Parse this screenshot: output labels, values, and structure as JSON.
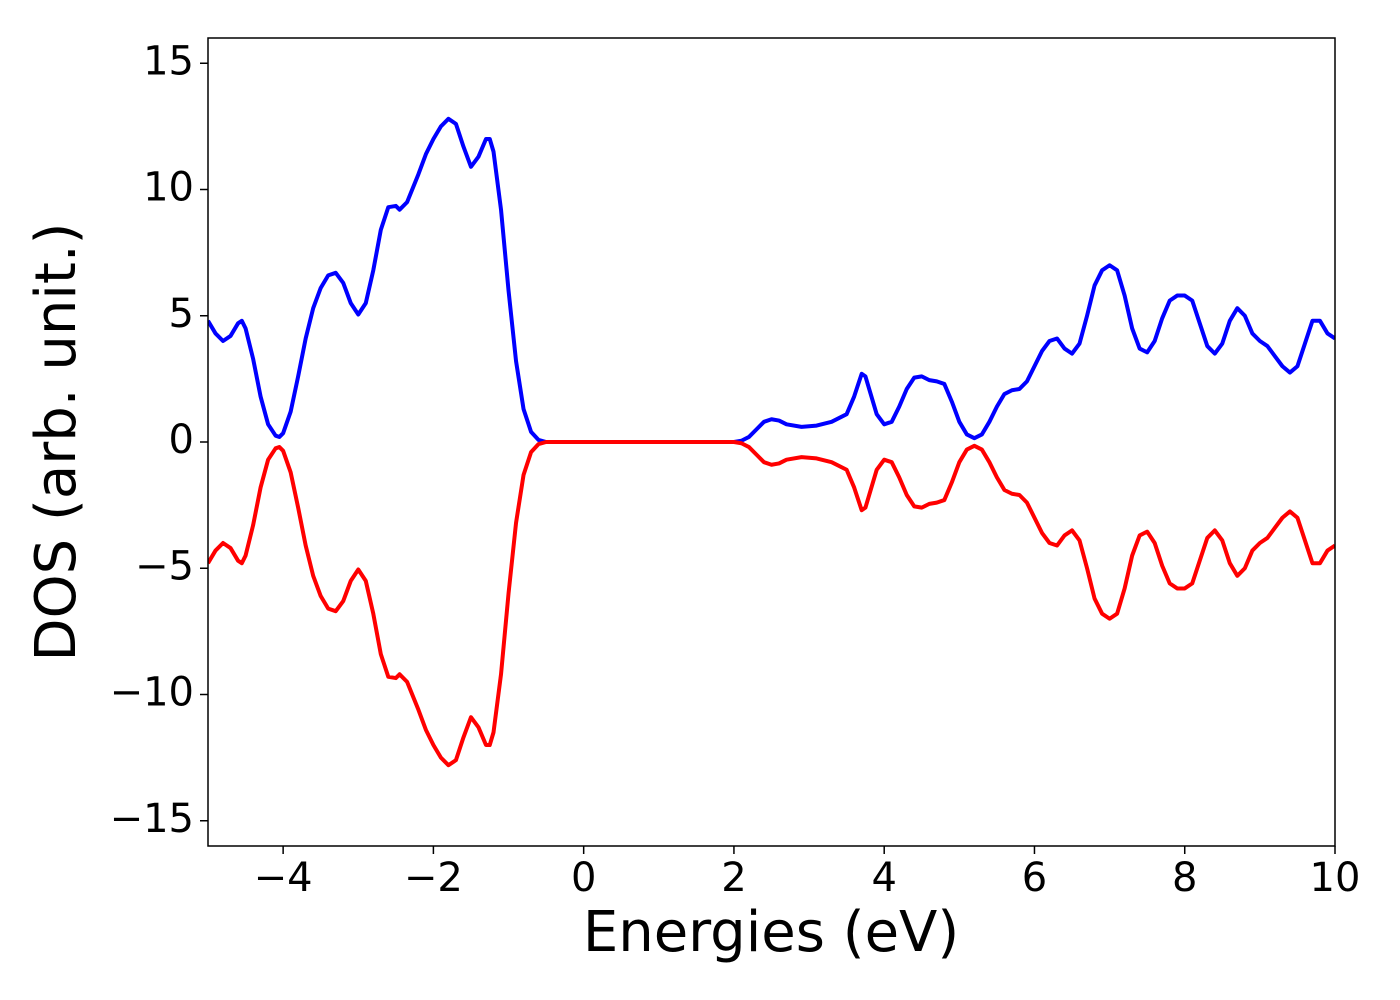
{
  "chart_data": {
    "type": "line",
    "xlabel": "Energies (eV)",
    "ylabel": "DOS (arb. unit.)",
    "xlim": [
      -5,
      10
    ],
    "ylim": [
      -16,
      16
    ],
    "xticks": [
      {
        "value": -4,
        "label": "−4"
      },
      {
        "value": -2,
        "label": "−2"
      },
      0,
      2,
      4,
      6,
      8,
      10
    ],
    "yticks": [
      {
        "value": -15,
        "label": "−15"
      },
      {
        "value": -10,
        "label": "−10"
      },
      {
        "value": -5,
        "label": "−5"
      },
      0,
      5,
      10,
      15
    ],
    "grid": false,
    "x": [
      -5.0,
      -4.9,
      -4.8,
      -4.7,
      -4.6,
      -4.55,
      -4.5,
      -4.4,
      -4.3,
      -4.2,
      -4.1,
      -4.05,
      -4.0,
      -3.9,
      -3.8,
      -3.7,
      -3.6,
      -3.5,
      -3.4,
      -3.3,
      -3.2,
      -3.1,
      -3.0,
      -2.9,
      -2.8,
      -2.7,
      -2.6,
      -2.5,
      -2.45,
      -2.35,
      -2.2,
      -2.1,
      -2.0,
      -1.9,
      -1.8,
      -1.7,
      -1.6,
      -1.5,
      -1.4,
      -1.3,
      -1.25,
      -1.2,
      -1.1,
      -1.0,
      -0.9,
      -0.8,
      -0.7,
      -0.6,
      -0.5,
      0,
      1,
      2,
      2.1,
      2.2,
      2.3,
      2.4,
      2.5,
      2.6,
      2.7,
      2.9,
      3.1,
      3.3,
      3.5,
      3.6,
      3.7,
      3.75,
      3.8,
      3.9,
      4.0,
      4.1,
      4.2,
      4.3,
      4.4,
      4.5,
      4.6,
      4.7,
      4.8,
      4.9,
      5.0,
      5.1,
      5.2,
      5.3,
      5.4,
      5.5,
      5.6,
      5.7,
      5.8,
      5.9,
      6.0,
      6.1,
      6.2,
      6.3,
      6.4,
      6.5,
      6.6,
      6.7,
      6.8,
      6.9,
      7.0,
      7.1,
      7.2,
      7.3,
      7.4,
      7.5,
      7.6,
      7.7,
      7.8,
      7.9,
      8.0,
      8.1,
      8.2,
      8.3,
      8.4,
      8.5,
      8.6,
      8.7,
      8.8,
      8.9,
      9.0,
      9.1,
      9.2,
      9.3,
      9.4,
      9.5,
      9.6,
      9.7,
      9.8,
      9.9,
      10.0
    ],
    "series": [
      {
        "color": "#0000ff",
        "values": [
          4.8,
          4.3,
          4.0,
          4.2,
          4.7,
          4.8,
          4.5,
          3.3,
          1.8,
          0.7,
          0.25,
          0.2,
          0.35,
          1.2,
          2.6,
          4.1,
          5.3,
          6.1,
          6.6,
          6.7,
          6.3,
          5.5,
          5.05,
          5.5,
          6.8,
          8.4,
          9.3,
          9.35,
          9.2,
          9.5,
          10.6,
          11.4,
          12.0,
          12.5,
          12.8,
          12.6,
          11.7,
          10.9,
          11.3,
          12.0,
          12.0,
          11.5,
          9.2,
          6.0,
          3.2,
          1.3,
          0.4,
          0.08,
          0,
          0,
          0,
          0,
          0.05,
          0.2,
          0.5,
          0.8,
          0.9,
          0.85,
          0.7,
          0.6,
          0.65,
          0.8,
          1.1,
          1.8,
          2.7,
          2.6,
          2.1,
          1.1,
          0.7,
          0.8,
          1.4,
          2.1,
          2.55,
          2.6,
          2.45,
          2.4,
          2.3,
          1.6,
          0.8,
          0.3,
          0.15,
          0.3,
          0.8,
          1.4,
          1.9,
          2.05,
          2.1,
          2.4,
          3.0,
          3.6,
          4.0,
          4.1,
          3.7,
          3.5,
          3.9,
          5.0,
          6.2,
          6.8,
          7.0,
          6.8,
          5.8,
          4.5,
          3.7,
          3.55,
          4.0,
          4.9,
          5.6,
          5.8,
          5.8,
          5.6,
          4.7,
          3.8,
          3.5,
          3.9,
          4.8,
          5.3,
          5.0,
          4.3,
          4.0,
          3.8,
          3.4,
          3.0,
          2.75,
          3.0,
          3.9,
          4.8,
          4.8,
          4.3,
          4.1
        ]
      },
      {
        "color": "#ff0000",
        "values": [
          -4.8,
          -4.3,
          -4.0,
          -4.2,
          -4.7,
          -4.8,
          -4.5,
          -3.3,
          -1.8,
          -0.7,
          -0.25,
          -0.2,
          -0.35,
          -1.2,
          -2.6,
          -4.1,
          -5.3,
          -6.1,
          -6.6,
          -6.7,
          -6.3,
          -5.5,
          -5.05,
          -5.5,
          -6.8,
          -8.4,
          -9.3,
          -9.35,
          -9.2,
          -9.5,
          -10.6,
          -11.4,
          -12.0,
          -12.5,
          -12.8,
          -12.6,
          -11.7,
          -10.9,
          -11.3,
          -12.0,
          -12.0,
          -11.5,
          -9.2,
          -6.0,
          -3.2,
          -1.3,
          -0.4,
          -0.08,
          0,
          0,
          0,
          0,
          -0.05,
          -0.2,
          -0.5,
          -0.8,
          -0.9,
          -0.85,
          -0.7,
          -0.6,
          -0.65,
          -0.8,
          -1.1,
          -1.8,
          -2.7,
          -2.6,
          -2.1,
          -1.1,
          -0.7,
          -0.8,
          -1.4,
          -2.1,
          -2.55,
          -2.6,
          -2.45,
          -2.4,
          -2.3,
          -1.6,
          -0.8,
          -0.3,
          -0.15,
          -0.3,
          -0.8,
          -1.4,
          -1.9,
          -2.05,
          -2.1,
          -2.4,
          -3.0,
          -3.6,
          -4.0,
          -4.1,
          -3.7,
          -3.5,
          -3.9,
          -5.0,
          -6.2,
          -6.8,
          -7.0,
          -6.8,
          -5.8,
          -4.5,
          -3.7,
          -3.55,
          -4.0,
          -4.9,
          -5.6,
          -5.8,
          -5.8,
          -5.6,
          -4.7,
          -3.8,
          -3.5,
          -3.9,
          -4.8,
          -5.3,
          -5.0,
          -4.3,
          -4.0,
          -3.8,
          -3.4,
          -3.0,
          -2.75,
          -3.0,
          -3.9,
          -4.8,
          -4.8,
          -4.3,
          -4.1
        ]
      }
    ]
  }
}
